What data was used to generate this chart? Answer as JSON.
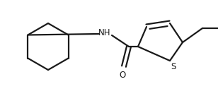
{
  "bg_color": "#ffffff",
  "line_color": "#1a1a1a",
  "line_width": 1.6,
  "fig_width": 3.08,
  "fig_height": 1.36,
  "dpi": 100,
  "xlim": [
    0,
    308
  ],
  "ylim": [
    0,
    136
  ]
}
